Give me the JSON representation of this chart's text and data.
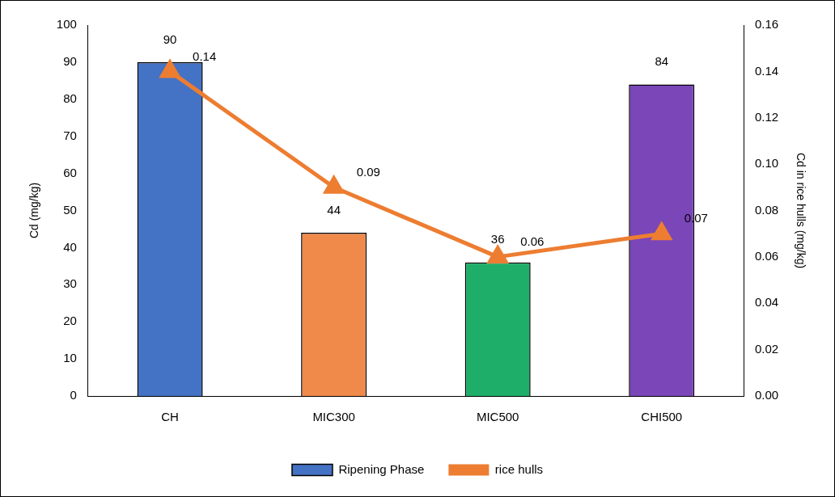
{
  "chart_data": {
    "type": "bar",
    "categories": [
      "CH",
      "MIC300",
      "MIC500",
      "CHI500"
    ],
    "ylabel": "Cd (mg/kg)",
    "y2label": "Cd in rice hulls (mg/kg)",
    "series": [
      {
        "name": "Ripening Phase",
        "color": "#4472c4",
        "colors": [
          "#4472c4",
          "#f08a4b",
          "#1fae6a",
          "#7a46b8"
        ],
        "values": [
          90,
          44,
          36,
          84
        ]
      },
      {
        "name": "rice hulls",
        "type": "line",
        "axis": "y2",
        "color": "#ed7d31",
        "values": [
          0.14,
          0.09,
          0.06,
          0.07
        ]
      }
    ],
    "ylim": [
      0,
      100
    ],
    "yticks": [
      0,
      10,
      20,
      30,
      40,
      50,
      60,
      70,
      80,
      90,
      100
    ],
    "y2lim": [
      0,
      0.16
    ],
    "y2ticks": [
      {
        "value": 0,
        "label": "0.00"
      },
      0.02,
      0.04,
      0.06,
      0.08,
      {
        "value": 0.1,
        "label": "0.10"
      },
      0.12,
      0.14,
      0.16
    ],
    "data_labels": true,
    "legend": "bottom",
    "marker": "triangle",
    "line_style": "solid",
    "grid": false
  }
}
